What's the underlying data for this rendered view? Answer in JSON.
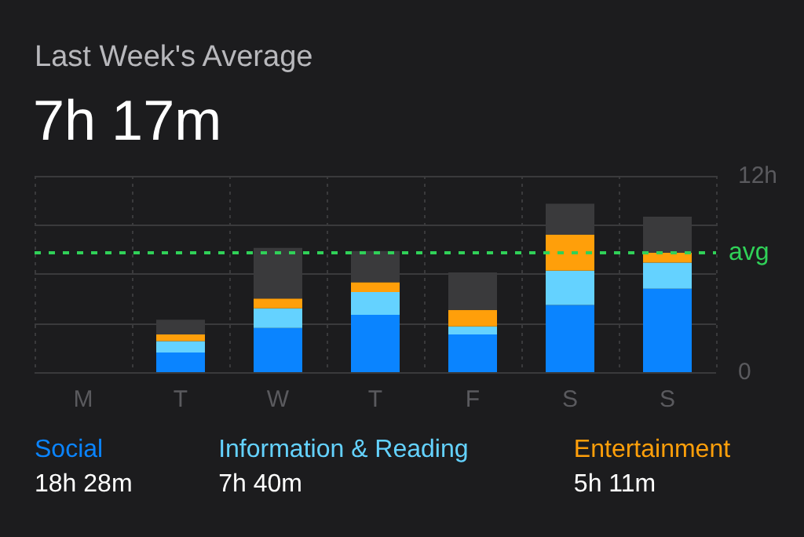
{
  "chart_data": {
    "type": "bar",
    "title": "Last Week's Average",
    "subtitle": "7h 17m",
    "categories": [
      "M",
      "T",
      "W",
      "T",
      "F",
      "S",
      "S"
    ],
    "stacked": true,
    "series": [
      {
        "name": "Social",
        "color": "#0a84ff",
        "values": [
          0,
          1.2,
          2.7,
          3.5,
          2.3,
          4.1,
          5.1
        ]
      },
      {
        "name": "Information & Reading",
        "color": "#64d2ff",
        "values": [
          0,
          0.7,
          1.2,
          1.4,
          0.5,
          2.1,
          1.6
        ]
      },
      {
        "name": "Entertainment",
        "color": "#ff9f0a",
        "values": [
          0,
          0.4,
          0.6,
          0.6,
          1.0,
          2.2,
          0.6
        ]
      },
      {
        "color": "#3a3a3c",
        "values": [
          0,
          0.9,
          3.1,
          1.9,
          2.3,
          1.9,
          2.2
        ]
      }
    ],
    "ylim": [
      0,
      12
    ],
    "yticks": [
      0,
      {
        "value": 3,
        "label": null
      },
      {
        "value": 6,
        "label": null
      },
      {
        "value": 9,
        "label": null
      },
      {
        "value": 12,
        "label": "12h"
      }
    ],
    "ref_lines": [
      {
        "axis": "y",
        "value": 7.28,
        "label": "avg",
        "color": "#30d158",
        "line_style": "dashed"
      }
    ],
    "annotations": [
      "18h 28m",
      "7h 40m",
      "5h 11m"
    ],
    "grid": true,
    "legend": "bottom"
  }
}
